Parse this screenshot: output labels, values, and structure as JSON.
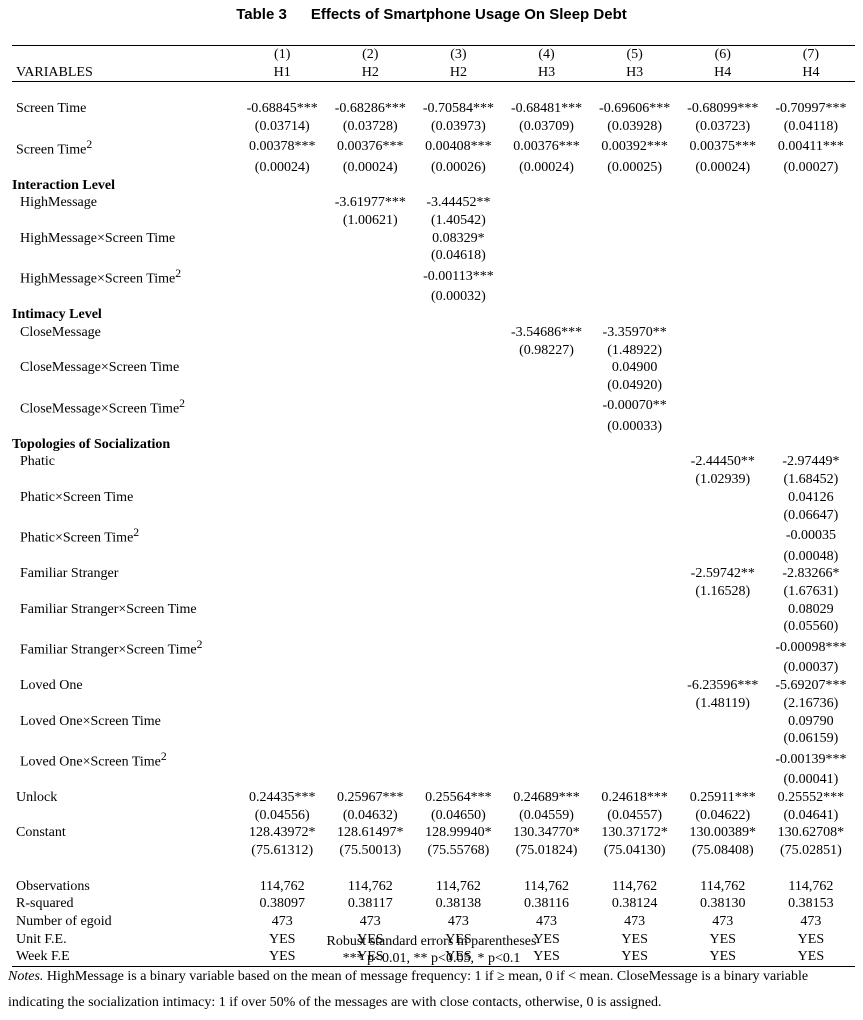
{
  "title": {
    "label": "Table 3",
    "text": "Effects of Smartphone Usage On Sleep Debt"
  },
  "header": {
    "variables_label": "VARIABLES",
    "model_numbers": [
      "(1)",
      "(2)",
      "(3)",
      "(4)",
      "(5)",
      "(6)",
      "(7)"
    ],
    "hypotheses": [
      "H1",
      "H2",
      "H2",
      "H3",
      "H3",
      "H4",
      "H4"
    ]
  },
  "rows": {
    "screen_time": {
      "label": "Screen Time",
      "coef": [
        "-0.68845***",
        "-0.68286***",
        "-0.70584***",
        "-0.68481***",
        "-0.69606***",
        "-0.68099***",
        "-0.70997***"
      ],
      "se": [
        "(0.03714)",
        "(0.03728)",
        "(0.03973)",
        "(0.03709)",
        "(0.03928)",
        "(0.03723)",
        "(0.04118)"
      ]
    },
    "screen_time_sq": {
      "label": "Screen Time",
      "sup": "2",
      "coef": [
        "0.00378***",
        "0.00376***",
        "0.00408***",
        "0.00376***",
        "0.00392***",
        "0.00375***",
        "0.00411***"
      ],
      "se": [
        "(0.00024)",
        "(0.00024)",
        "(0.00026)",
        "(0.00024)",
        "(0.00025)",
        "(0.00024)",
        "(0.00027)"
      ]
    },
    "interaction_heading": "Interaction Level",
    "high_message": {
      "label": "HighMessage",
      "coef": [
        "",
        "-3.61977***",
        "-3.44452**",
        "",
        "",
        "",
        ""
      ],
      "se": [
        "",
        "(1.00621)",
        "(1.40542)",
        "",
        "",
        "",
        ""
      ]
    },
    "high_message_x_st": {
      "label": "HighMessage×Screen Time",
      "coef": [
        "",
        "",
        "0.08329*",
        "",
        "",
        "",
        ""
      ],
      "se": [
        "",
        "",
        "(0.04618)",
        "",
        "",
        "",
        ""
      ]
    },
    "high_message_x_st2": {
      "label": "HighMessage×Screen Time",
      "sup": "2",
      "coef": [
        "",
        "",
        "-0.00113***",
        "",
        "",
        "",
        ""
      ],
      "se": [
        "",
        "",
        "(0.00032)",
        "",
        "",
        "",
        ""
      ]
    },
    "intimacy_heading": "Intimacy Level",
    "close_message": {
      "label": "CloseMessage",
      "coef": [
        "",
        "",
        "",
        "-3.54686***",
        "-3.35970**",
        "",
        ""
      ],
      "se": [
        "",
        "",
        "",
        "(0.98227)",
        "(1.48922)",
        "",
        ""
      ]
    },
    "close_message_x_st": {
      "label": "CloseMessage×Screen Time",
      "coef": [
        "",
        "",
        "",
        "",
        "0.04900",
        "",
        ""
      ],
      "se": [
        "",
        "",
        "",
        "",
        "(0.04920)",
        "",
        ""
      ]
    },
    "close_message_x_st2": {
      "label": "CloseMessage×Screen Time",
      "sup": "2",
      "coef": [
        "",
        "",
        "",
        "",
        "-0.00070**",
        "",
        ""
      ],
      "se": [
        "",
        "",
        "",
        "",
        "(0.00033)",
        "",
        ""
      ]
    },
    "topologies_heading": "Topologies of Socialization",
    "phatic": {
      "label": "Phatic",
      "coef": [
        "",
        "",
        "",
        "",
        "",
        "-2.44450**",
        "-2.97449*"
      ],
      "se": [
        "",
        "",
        "",
        "",
        "",
        "(1.02939)",
        "(1.68452)"
      ]
    },
    "phatic_x_st": {
      "label": "Phatic×Screen Time",
      "coef": [
        "",
        "",
        "",
        "",
        "",
        "",
        "0.04126"
      ],
      "se": [
        "",
        "",
        "",
        "",
        "",
        "",
        "(0.06647)"
      ]
    },
    "phatic_x_st2": {
      "label": "Phatic×Screen Time",
      "sup": "2",
      "coef": [
        "",
        "",
        "",
        "",
        "",
        "",
        "-0.00035"
      ],
      "se": [
        "",
        "",
        "",
        "",
        "",
        "",
        "(0.00048)"
      ]
    },
    "familiar_stranger": {
      "label": "Familiar Stranger",
      "coef": [
        "",
        "",
        "",
        "",
        "",
        "-2.59742**",
        "-2.83266*"
      ],
      "se": [
        "",
        "",
        "",
        "",
        "",
        "(1.16528)",
        "(1.67631)"
      ]
    },
    "familiar_stranger_x_st": {
      "label": "Familiar Stranger×Screen Time",
      "coef": [
        "",
        "",
        "",
        "",
        "",
        "",
        "0.08029"
      ],
      "se": [
        "",
        "",
        "",
        "",
        "",
        "",
        "(0.05560)"
      ]
    },
    "familiar_stranger_x_st2": {
      "label": "Familiar Stranger×Screen Time",
      "sup": "2",
      "coef": [
        "",
        "",
        "",
        "",
        "",
        "",
        "-0.00098***"
      ],
      "se": [
        "",
        "",
        "",
        "",
        "",
        "",
        "(0.00037)"
      ]
    },
    "loved_one": {
      "label": "Loved One",
      "coef": [
        "",
        "",
        "",
        "",
        "",
        "-6.23596***",
        "-5.69207***"
      ],
      "se": [
        "",
        "",
        "",
        "",
        "",
        "(1.48119)",
        "(2.16736)"
      ]
    },
    "loved_one_x_st": {
      "label": "Loved One×Screen Time",
      "coef": [
        "",
        "",
        "",
        "",
        "",
        "",
        "0.09790"
      ],
      "se": [
        "",
        "",
        "",
        "",
        "",
        "",
        "(0.06159)"
      ]
    },
    "loved_one_x_st2": {
      "label": "Loved One×Screen Time",
      "sup": "2",
      "coef": [
        "",
        "",
        "",
        "",
        "",
        "",
        "-0.00139***"
      ],
      "se": [
        "",
        "",
        "",
        "",
        "",
        "",
        "(0.00041)"
      ]
    },
    "unlock": {
      "label": "Unlock",
      "coef": [
        "0.24435***",
        "0.25967***",
        "0.25564***",
        "0.24689***",
        "0.24618***",
        "0.25911***",
        "0.25552***"
      ],
      "se": [
        "(0.04556)",
        "(0.04632)",
        "(0.04650)",
        "(0.04559)",
        "(0.04557)",
        "(0.04622)",
        "(0.04641)"
      ]
    },
    "constant": {
      "label": "Constant",
      "coef": [
        "128.43972*",
        "128.61497*",
        "128.99940*",
        "130.34770*",
        "130.37172*",
        "130.00389*",
        "130.62708*"
      ],
      "se": [
        "(75.61312)",
        "(75.50013)",
        "(75.55768)",
        "(75.01824)",
        "(75.04130)",
        "(75.08408)",
        "(75.02851)"
      ]
    }
  },
  "stats": {
    "observations": {
      "label": "Observations",
      "values": [
        "114,762",
        "114,762",
        "114,762",
        "114,762",
        "114,762",
        "114,762",
        "114,762"
      ]
    },
    "r_squared": {
      "label": "R-squared",
      "values": [
        "0.38097",
        "0.38117",
        "0.38138",
        "0.38116",
        "0.38124",
        "0.38130",
        "0.38153"
      ]
    },
    "egoid": {
      "label": "Number of egoid",
      "values": [
        "473",
        "473",
        "473",
        "473",
        "473",
        "473",
        "473"
      ]
    },
    "unit_fe": {
      "label": "Unit F.E.",
      "values": [
        "YES",
        "YES",
        "YES",
        "YES",
        "YES",
        "YES",
        "YES"
      ]
    },
    "week_fe": {
      "label": "Week F.E",
      "values": [
        "YES",
        "YES",
        "YES",
        "YES",
        "YES",
        "YES",
        "YES"
      ]
    }
  },
  "footnotes": {
    "robust": "Robust standard errors in parentheses",
    "significance": "*** p<0.01, ** p<0.05, * p<0.1",
    "notes_label": "Notes.",
    "notes_text": "HighMessage is a binary variable based on the mean of message frequency: 1 if ≥ mean, 0 if < mean. CloseMessage is a binary variable indicating the socialization intimacy: 1 if over 50% of the messages are with close contacts, otherwise, 0 is assigned."
  }
}
